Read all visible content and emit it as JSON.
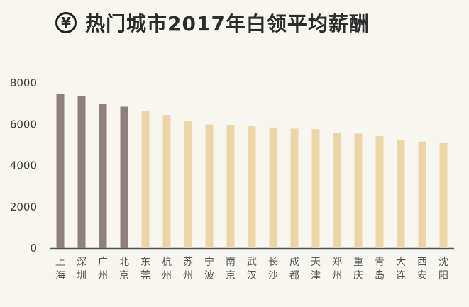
{
  "title": "热门城市2017年白领平均薪酬",
  "icon": "yen-icon",
  "chart_data": {
    "type": "bar",
    "title": "热门城市2017年白领平均薪酬",
    "xlabel": "",
    "ylabel": "",
    "ylim": [
      0,
      8000
    ],
    "yticks": [
      0,
      2000,
      4000,
      6000,
      8000
    ],
    "grid": false,
    "legend": "none",
    "categories": [
      "上海",
      "深圳",
      "广州",
      "北京",
      "东莞",
      "杭州",
      "苏州",
      "宁波",
      "南京",
      "武汉",
      "长沙",
      "成都",
      "天津",
      "郑州",
      "重庆",
      "青岛",
      "大连",
      "西安",
      "沈阳"
    ],
    "values": [
      7450,
      7350,
      7000,
      6850,
      6650,
      6450,
      6150,
      5990,
      5970,
      5900,
      5840,
      5790,
      5760,
      5590,
      5550,
      5420,
      5230,
      5160,
      5090
    ],
    "colors": {
      "highlight": "#8f8080",
      "normal": "#ecd6a8",
      "axis": "#555555"
    },
    "highlight_count": 4
  }
}
